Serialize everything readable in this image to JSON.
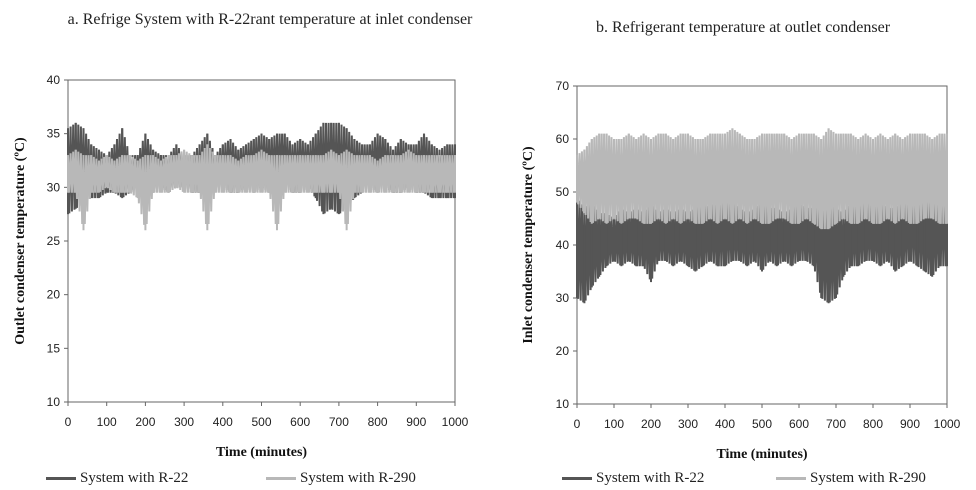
{
  "chart_data": [
    {
      "type": "line",
      "title": "a. Refrige System with R-22rant temperature at inlet condenser",
      "xlabel": "Time (minutes)",
      "ylabel": "Outlet condenser temperature (ºC)",
      "xlim": [
        0,
        1000
      ],
      "ylim": [
        10,
        40
      ],
      "xticks": [
        "0",
        "100",
        "200",
        "300",
        "400",
        "500",
        "600",
        "700",
        "800",
        "900",
        "1000"
      ],
      "yticks": [
        "10",
        "15",
        "20",
        "25",
        "30",
        "35",
        "40"
      ],
      "grid": false,
      "legend": "bottom",
      "series": [
        {
          "name": "System with R-22",
          "color": "#555555",
          "x": [
            0,
            20,
            40,
            60,
            80,
            100,
            120,
            140,
            160,
            180,
            200,
            220,
            240,
            260,
            280,
            300,
            320,
            340,
            360,
            380,
            400,
            420,
            440,
            460,
            480,
            500,
            520,
            540,
            560,
            580,
            600,
            620,
            640,
            660,
            680,
            700,
            720,
            740,
            760,
            780,
            800,
            820,
            840,
            860,
            880,
            900,
            920,
            940,
            960,
            980,
            1000
          ],
          "max": [
            35.5,
            36,
            35.5,
            34,
            33.5,
            33,
            34,
            35.5,
            33,
            33,
            35,
            33.5,
            33,
            33,
            34,
            33,
            33,
            34,
            35,
            33,
            34,
            34.5,
            33.5,
            34,
            34.5,
            35,
            34.5,
            35,
            35,
            34,
            34.5,
            34,
            35,
            36,
            36,
            36,
            35.5,
            34.5,
            34,
            34,
            35,
            34.5,
            33.5,
            34.5,
            34,
            34,
            35,
            34,
            33.5,
            34,
            34
          ],
          "min": [
            27.5,
            28,
            28.5,
            29,
            29,
            29.5,
            29.5,
            29,
            29.5,
            30,
            29.5,
            29.5,
            30,
            29.5,
            30,
            30,
            29.5,
            29.5,
            29.5,
            30,
            30,
            29.5,
            29.5,
            30,
            29.5,
            30,
            29.5,
            29.5,
            30,
            29.5,
            29.5,
            30,
            29,
            27.5,
            28,
            27.5,
            28,
            29,
            29.5,
            30,
            29.5,
            30,
            29.5,
            29.5,
            30,
            29.5,
            29.5,
            29,
            29,
            29,
            29
          ]
        },
        {
          "name": "System with R-290",
          "color": "#b8b8b8",
          "x": [
            0,
            20,
            40,
            60,
            80,
            100,
            120,
            140,
            160,
            180,
            200,
            220,
            240,
            260,
            280,
            300,
            320,
            340,
            360,
            380,
            400,
            420,
            440,
            460,
            480,
            500,
            520,
            540,
            560,
            580,
            600,
            620,
            640,
            660,
            680,
            700,
            720,
            740,
            760,
            780,
            800,
            820,
            840,
            860,
            880,
            900,
            920,
            940,
            960,
            980,
            1000
          ],
          "max": [
            33,
            33.5,
            33,
            33,
            32.5,
            33,
            32.5,
            33,
            33,
            32.5,
            33,
            33,
            32.5,
            33,
            33,
            33.5,
            33,
            33,
            34,
            33,
            33,
            33,
            32.5,
            33,
            33,
            33.5,
            33,
            33,
            33,
            33,
            33,
            33,
            33,
            33,
            33.5,
            33,
            33.5,
            33,
            33,
            33,
            32.5,
            33,
            33,
            33,
            33.5,
            33,
            33,
            33,
            33,
            33,
            33
          ],
          "min": [
            29.5,
            29.5,
            26,
            29.5,
            29.5,
            30,
            29.5,
            29.5,
            29.5,
            29,
            26,
            29.5,
            29.5,
            29.5,
            30,
            29.5,
            29.5,
            29.5,
            26,
            29.5,
            29.5,
            29.5,
            29.5,
            29.5,
            29.5,
            29.5,
            29.5,
            26,
            29.5,
            29.5,
            29.5,
            29.5,
            29.5,
            29.5,
            29.5,
            29.5,
            26,
            29.5,
            29.5,
            29.5,
            29.5,
            29.5,
            29.5,
            29.5,
            29.5,
            29.5,
            29.5,
            29.5,
            29.5,
            29.5,
            29.5
          ]
        }
      ]
    },
    {
      "type": "line",
      "title": "b. Refrigerant temperature at outlet condenser",
      "xlabel": "Time (minutes)",
      "ylabel": "Inlet condenser temperature (ºC)",
      "xlim": [
        0,
        1000
      ],
      "ylim": [
        10,
        70
      ],
      "xticks": [
        "0",
        "100",
        "200",
        "300",
        "400",
        "500",
        "600",
        "700",
        "800",
        "900",
        "1000"
      ],
      "yticks": [
        "10",
        "20",
        "30",
        "40",
        "50",
        "60",
        "70"
      ],
      "grid": false,
      "legend": "bottom",
      "series": [
        {
          "name": "System with R-22",
          "color": "#555555",
          "x": [
            0,
            20,
            40,
            60,
            80,
            100,
            120,
            140,
            160,
            180,
            200,
            220,
            240,
            260,
            280,
            300,
            320,
            340,
            360,
            380,
            400,
            420,
            440,
            460,
            480,
            500,
            520,
            540,
            560,
            580,
            600,
            620,
            640,
            660,
            680,
            700,
            720,
            740,
            760,
            780,
            800,
            820,
            840,
            860,
            880,
            900,
            920,
            940,
            960,
            980,
            1000
          ],
          "max": [
            49,
            47,
            48,
            46,
            46,
            45,
            47,
            46,
            47,
            46,
            48,
            46,
            47,
            46,
            47,
            46,
            47,
            48,
            47,
            49,
            51,
            48,
            47,
            46,
            47,
            48,
            47,
            47,
            46,
            47,
            48,
            47,
            47,
            48,
            48,
            47,
            46,
            48,
            48,
            49,
            48,
            48,
            47,
            47,
            48,
            51,
            51,
            50,
            49,
            52,
            52
          ],
          "min": [
            30,
            29,
            32,
            34,
            36,
            37,
            36,
            37,
            36,
            36,
            33,
            37,
            37,
            36,
            37,
            36,
            35,
            36,
            37,
            36,
            36,
            37,
            37,
            36,
            37,
            35,
            37,
            36,
            37,
            36,
            37,
            37,
            36,
            30,
            29,
            30,
            34,
            36,
            36,
            37,
            37,
            36,
            37,
            35,
            36,
            37,
            36,
            35,
            34,
            36,
            36
          ]
        },
        {
          "name": "System with R-290",
          "color": "#b8b8b8",
          "x": [
            0,
            20,
            40,
            60,
            80,
            100,
            120,
            140,
            160,
            180,
            200,
            220,
            240,
            260,
            280,
            300,
            320,
            340,
            360,
            380,
            400,
            420,
            440,
            460,
            480,
            500,
            520,
            540,
            560,
            580,
            600,
            620,
            640,
            660,
            680,
            700,
            720,
            740,
            760,
            780,
            800,
            820,
            840,
            860,
            880,
            900,
            920,
            940,
            960,
            980,
            1000
          ],
          "max": [
            57,
            58,
            60,
            61,
            61,
            60,
            60,
            61,
            60,
            61,
            60,
            61,
            61,
            60,
            61,
            61,
            60,
            60,
            61,
            61,
            61,
            62,
            61,
            60,
            60,
            61,
            61,
            61,
            61,
            60,
            61,
            61,
            61,
            60,
            62,
            61,
            61,
            61,
            60,
            61,
            60,
            61,
            60,
            61,
            60,
            61,
            61,
            61,
            60,
            61,
            61
          ],
          "min": [
            48,
            46,
            44,
            45,
            44,
            45,
            44,
            45,
            45,
            44,
            44,
            45,
            44,
            45,
            44,
            45,
            44,
            44,
            45,
            44,
            45,
            44,
            45,
            44,
            45,
            44,
            44,
            45,
            45,
            44,
            44,
            45,
            44,
            43,
            43,
            44,
            45,
            44,
            44,
            45,
            44,
            44,
            45,
            44,
            45,
            44,
            44,
            45,
            45,
            44,
            44
          ]
        }
      ]
    }
  ]
}
